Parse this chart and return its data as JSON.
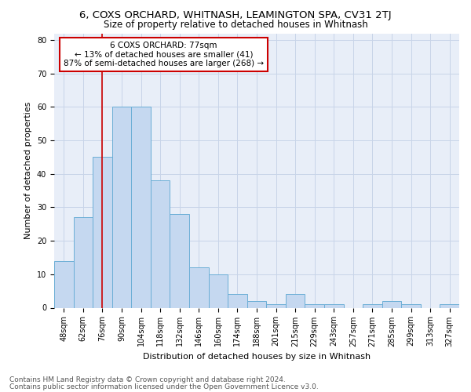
{
  "title_line1": "6, COXS ORCHARD, WHITNASH, LEAMINGTON SPA, CV31 2TJ",
  "title_line2": "Size of property relative to detached houses in Whitnash",
  "xlabel": "Distribution of detached houses by size in Whitnash",
  "ylabel": "Number of detached properties",
  "categories": [
    "48sqm",
    "62sqm",
    "76sqm",
    "90sqm",
    "104sqm",
    "118sqm",
    "132sqm",
    "146sqm",
    "160sqm",
    "174sqm",
    "188sqm",
    "201sqm",
    "215sqm",
    "229sqm",
    "243sqm",
    "257sqm",
    "271sqm",
    "285sqm",
    "299sqm",
    "313sqm",
    "327sqm"
  ],
  "bar_heights": [
    14,
    27,
    45,
    60,
    60,
    38,
    28,
    12,
    10,
    4,
    2,
    1,
    4,
    1,
    1,
    0,
    1,
    2,
    1,
    0,
    1
  ],
  "bar_color": "#c5d8f0",
  "bar_edge_color": "#6baed6",
  "vline_x": 2,
  "vline_color": "#cc0000",
  "annotation_text": "6 COXS ORCHARD: 77sqm\n← 13% of detached houses are smaller (41)\n87% of semi-detached houses are larger (268) →",
  "annotation_box_color": "#ffffff",
  "annotation_box_edge": "#cc0000",
  "ylim": [
    0,
    82
  ],
  "yticks": [
    0,
    10,
    20,
    30,
    40,
    50,
    60,
    70,
    80
  ],
  "grid_color": "#c8d4e8",
  "bg_color": "#e8eef8",
  "footer_line1": "Contains HM Land Registry data © Crown copyright and database right 2024.",
  "footer_line2": "Contains public sector information licensed under the Open Government Licence v3.0.",
  "title_fontsize": 9.5,
  "subtitle_fontsize": 8.5,
  "axis_label_fontsize": 8,
  "tick_fontsize": 7,
  "annotation_fontsize": 7.5,
  "footer_fontsize": 6.5
}
